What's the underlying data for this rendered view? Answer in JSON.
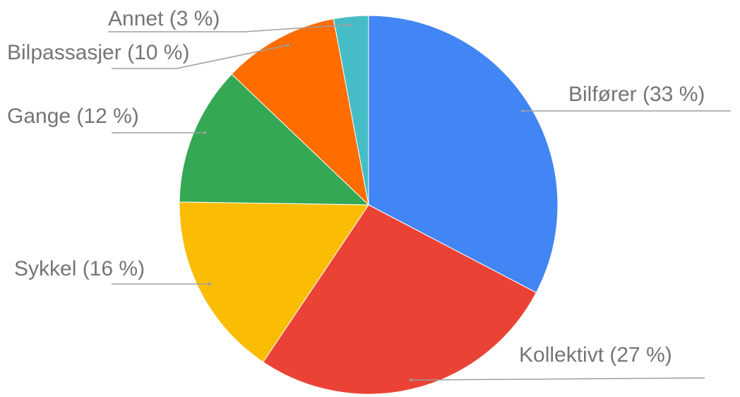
{
  "chart_data": {
    "type": "pie",
    "values": [
      33,
      27,
      16,
      12,
      10,
      3
    ],
    "value_labels": [
      "Bilfører (33 %)",
      "Kollektivt (27 %)",
      "Sykkel (16 %)",
      "Gange (12 %)",
      "Bilpassasjer (10 %)",
      "Annet (3 %)"
    ],
    "colors": [
      "#4285f4",
      "#ea4335",
      "#fbbc04",
      "#34a853",
      "#ff6d01",
      "#46bdc6"
    ]
  }
}
